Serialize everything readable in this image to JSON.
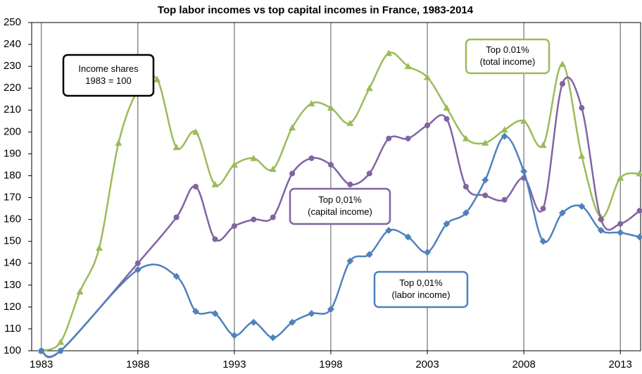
{
  "chart_data": {
    "type": "line",
    "title": "Top labor incomes vs top capital incomes in France, 1983-2014",
    "xlim": [
      1982.5,
      2014.05
    ],
    "xticks": [
      1983,
      1988,
      1993,
      1998,
      2003,
      2008,
      2013
    ],
    "ylim": [
      100,
      250
    ],
    "yticks": [
      100,
      110,
      120,
      130,
      140,
      150,
      160,
      170,
      180,
      190,
      200,
      210,
      220,
      230,
      240,
      250
    ],
    "grid": true,
    "series": [
      {
        "name": "Top 0.01% (total income)",
        "color": "#9bbb59",
        "marker": "triangle",
        "x": [
          1983,
          1984,
          1985,
          1986,
          1987,
          1988,
          1989,
          1990,
          1991,
          1992,
          1993,
          1994,
          1995,
          1996,
          1997,
          1998,
          1999,
          2000,
          2001,
          2002,
          2003,
          2004,
          2005,
          2006,
          2007,
          2008,
          2009,
          2010,
          2011,
          2012,
          2013,
          2014
        ],
        "values": [
          100,
          104,
          127,
          147,
          195,
          219,
          224,
          193,
          200,
          176,
          185,
          188,
          183,
          202,
          213,
          211,
          204,
          220,
          236,
          230,
          225,
          211,
          197,
          195,
          201,
          205,
          194,
          231,
          189,
          161,
          179,
          181
        ]
      },
      {
        "name": "Top 0,01% (capital income)",
        "color": "#8064a2",
        "marker": "circle",
        "x": [
          1983,
          1984,
          1988,
          1990,
          1991,
          1992,
          1993,
          1994,
          1995,
          1996,
          1997,
          1998,
          1999,
          2000,
          2001,
          2002,
          2003,
          2004,
          2005,
          2006,
          2007,
          2008,
          2009,
          2010,
          2011,
          2012,
          2013,
          2014
        ],
        "values": [
          100,
          100,
          140,
          161,
          175,
          151,
          157,
          160,
          161,
          181,
          188,
          185,
          176,
          181,
          197,
          197,
          203,
          206,
          175,
          171,
          169,
          179,
          165,
          222,
          211,
          160,
          158,
          164
        ]
      },
      {
        "name": "Top 0,01% (labor income)",
        "color": "#4f81bd",
        "marker": "diamond",
        "x": [
          1983,
          1984,
          1988,
          1990,
          1991,
          1992,
          1993,
          1994,
          1995,
          1996,
          1997,
          1998,
          1999,
          2000,
          2001,
          2002,
          2003,
          2004,
          2005,
          2006,
          2007,
          2008,
          2009,
          2010,
          2011,
          2012,
          2013,
          2014
        ],
        "values": [
          100,
          100,
          137,
          134,
          118,
          117,
          107,
          113,
          106,
          113,
          117,
          119,
          141,
          144,
          155,
          152,
          145,
          158,
          163,
          178,
          198,
          182,
          150,
          163,
          166,
          155,
          154,
          152
        ]
      }
    ],
    "annotations": [
      {
        "lines": [
          "Income shares",
          "1983 = 100"
        ],
        "color": "#000000"
      },
      {
        "lines": [
          "Top 0.01%",
          "(total income)"
        ],
        "color": "#9bbb59"
      },
      {
        "lines": [
          "Top 0,01%",
          "(capital income)"
        ],
        "color": "#8064a2"
      },
      {
        "lines": [
          "Top 0,01%",
          "(labor income)"
        ],
        "color": "#4f81bd"
      }
    ]
  }
}
